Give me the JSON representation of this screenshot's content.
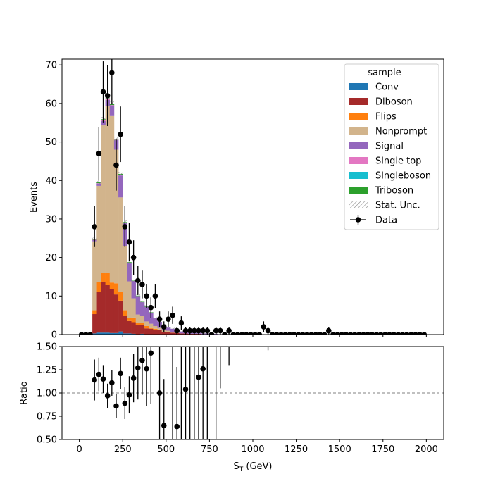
{
  "chart_data": [
    {
      "type": "stacked-histogram",
      "panel": "main",
      "xlabel": "",
      "ylabel": "Events",
      "xlim": [
        -100,
        2100
      ],
      "ylim": [
        0,
        71.5
      ],
      "xticks": [
        0,
        250,
        500,
        750,
        1000,
        1250,
        1500,
        1750,
        2000
      ],
      "xtick_labels": [
        "0",
        "250",
        "500",
        "750",
        "1000",
        "1250",
        "1500",
        "1750",
        "2000"
      ],
      "yticks": [
        0,
        10,
        20,
        30,
        40,
        50,
        60,
        70
      ],
      "ytick_labels": [
        "0",
        "10",
        "20",
        "30",
        "40",
        "50",
        "60",
        "70"
      ],
      "bin_edges": [
        75,
        100,
        125,
        150,
        175,
        200,
        225,
        250,
        275,
        300,
        325,
        350,
        375,
        400,
        425,
        450,
        475,
        500,
        525,
        550,
        575,
        600,
        625,
        650,
        675,
        700,
        725,
        750,
        775,
        800,
        825,
        850,
        875,
        900,
        925,
        950,
        975,
        1000
      ],
      "series": [
        {
          "name": "Conv",
          "color": "#1f77b4",
          "values": [
            0.3,
            0.5,
            0.5,
            0.5,
            0.4,
            0.4,
            0.8,
            0.3,
            0.3,
            0.2,
            0,
            0.2,
            0,
            0,
            0,
            0,
            0,
            0,
            0,
            0,
            0,
            0,
            0,
            0,
            0,
            0,
            0,
            0,
            0,
            0,
            0,
            0,
            0,
            0,
            0,
            0,
            0
          ]
        },
        {
          "name": "Diboson",
          "color": "#a52a2a",
          "values": [
            5,
            10.5,
            13.2,
            12.4,
            11.4,
            10,
            8,
            4.5,
            3.2,
            3,
            2.4,
            2.2,
            1.6,
            1.5,
            1.1,
            1.2,
            0.6,
            0.7,
            0.5,
            0.4,
            0.3,
            0.3,
            0.2,
            0.2,
            0.2,
            0.1,
            0.1,
            0.1,
            0.1,
            0,
            0,
            0,
            0,
            0,
            0,
            0,
            0
          ]
        },
        {
          "name": "Flips",
          "color": "#ff7f0e",
          "values": [
            1,
            2.7,
            2.3,
            3.1,
            1.7,
            2.9,
            2.2,
            1.5,
            0.8,
            1.2,
            0.6,
            0.6,
            0.6,
            0.2,
            0.4,
            0.1,
            0.1,
            0,
            0,
            0,
            0,
            0,
            0,
            0,
            0,
            0,
            0,
            0,
            0,
            0,
            0,
            0,
            0,
            0,
            0,
            0,
            0
          ]
        },
        {
          "name": "Nonprompt",
          "color": "#d2b48c",
          "values": [
            17.9,
            24.9,
            38.3,
            43.3,
            43.4,
            34.7,
            24.6,
            16.7,
            9.5,
            5,
            2.2,
            1.8,
            1.2,
            1.1,
            0.7,
            0.4,
            0.4,
            0.3,
            0.2,
            0.2,
            0,
            0,
            0,
            0,
            0,
            0,
            0,
            0,
            0,
            0,
            0,
            0,
            0,
            0,
            0,
            0,
            0
          ]
        },
        {
          "name": "Signal",
          "color": "#9467bd",
          "values": [
            0.3,
            0.6,
            1.1,
            1.6,
            2.6,
            2.5,
            5.7,
            5.9,
            4.7,
            4.5,
            4.8,
            3.6,
            3.8,
            2.9,
            2,
            1.6,
            1.3,
            0.8,
            0.8,
            0.7,
            0.5,
            0.4,
            0.4,
            0.3,
            0.3,
            0.2,
            0.2,
            0.1,
            0.1,
            0.1,
            0.1,
            0.1,
            0.05,
            0.05,
            0.05,
            0.05,
            0.05
          ]
        },
        {
          "name": "Single top",
          "color": "#e377c2",
          "values": [
            0.1,
            0.1,
            0.2,
            0.2,
            0.1,
            0.1,
            0.1,
            0.1,
            0.1,
            0,
            0,
            0,
            0,
            0,
            0,
            0,
            0,
            0,
            0,
            0,
            0,
            0,
            0,
            0,
            0,
            0,
            0,
            0,
            0,
            0,
            0,
            0,
            0,
            0,
            0,
            0,
            0
          ]
        },
        {
          "name": "Singleboson",
          "color": "#17becf",
          "values": [
            0,
            0,
            0,
            0,
            0,
            0,
            0,
            0,
            0,
            0,
            0,
            0,
            0,
            0,
            0,
            0,
            0,
            0,
            0,
            0,
            0,
            0,
            0,
            0,
            0,
            0,
            0,
            0,
            0,
            0,
            0,
            0,
            0,
            0,
            0,
            0,
            0
          ]
        },
        {
          "name": "Triboson",
          "color": "#2ca02c",
          "values": [
            0.1,
            0.2,
            0.3,
            0.2,
            0.3,
            0.2,
            0.3,
            0.2,
            0.2,
            0.1,
            0.1,
            0.1,
            0.1,
            0.1,
            0,
            0,
            0,
            0,
            0,
            0,
            0,
            0,
            0,
            0,
            0,
            0,
            0,
            0,
            0,
            0,
            0,
            0,
            0,
            0,
            0,
            0,
            0
          ]
        }
      ],
      "data_points": {
        "name": "Data",
        "x": [
          12.5,
          37.5,
          62.5,
          87.5,
          112.5,
          137.5,
          162.5,
          187.5,
          212.5,
          237.5,
          262.5,
          287.5,
          312.5,
          337.5,
          362.5,
          387.5,
          412.5,
          437.5,
          462.5,
          487.5,
          512.5,
          537.5,
          562.5,
          587.5,
          612.5,
          637.5,
          662.5,
          687.5,
          712.5,
          737.5,
          762.5,
          787.5,
          812.5,
          837.5,
          862.5,
          887.5,
          912.5,
          937.5,
          962.5,
          987.5,
          1012.5,
          1037.5,
          1062.5,
          1087.5,
          1112.5,
          1137.5,
          1162.5,
          1187.5,
          1212.5,
          1237.5,
          1262.5,
          1287.5,
          1312.5,
          1337.5,
          1362.5,
          1387.5,
          1412.5,
          1437.5,
          1462.5,
          1487.5,
          1512.5,
          1537.5,
          1562.5,
          1587.5,
          1612.5,
          1637.5,
          1662.5,
          1687.5,
          1712.5,
          1737.5,
          1762.5,
          1787.5,
          1812.5,
          1837.5,
          1862.5,
          1887.5,
          1912.5,
          1937.5,
          1962.5,
          1987.5
        ],
        "y": [
          0,
          0,
          0,
          28,
          47,
          63,
          62,
          68,
          44,
          52,
          28,
          24,
          20,
          14,
          13,
          10,
          7,
          10,
          4,
          2,
          4,
          5,
          1,
          3,
          1,
          1,
          1,
          1,
          1,
          1,
          0,
          1,
          1,
          0,
          1,
          0,
          0,
          0,
          0,
          0,
          0,
          0,
          2,
          1,
          0,
          0,
          0,
          0,
          0,
          0,
          0,
          0,
          0,
          0,
          0,
          0,
          0,
          1,
          0,
          0,
          0,
          0,
          0,
          0,
          0,
          0,
          0,
          0,
          0,
          0,
          0,
          0,
          0,
          0,
          0,
          0,
          0,
          0,
          0,
          0
        ]
      },
      "legend": {
        "title": "sample",
        "placement": "top-right",
        "stat_unc_label": "Stat. Unc.",
        "data_label": "Data"
      }
    },
    {
      "type": "scatter",
      "panel": "ratio",
      "xlabel": "S_T (GeV)",
      "ylabel": "Ratio",
      "xlim": [
        -100,
        2100
      ],
      "ylim": [
        0.5,
        1.5
      ],
      "yticks": [
        0.5,
        0.75,
        1.0,
        1.25,
        1.5
      ],
      "ytick_labels": [
        "0.50",
        "0.75",
        "1.00",
        "1.25",
        "1.50"
      ],
      "reference_line": 1.0,
      "x": [
        87.5,
        112.5,
        137.5,
        162.5,
        187.5,
        212.5,
        237.5,
        262.5,
        287.5,
        312.5,
        337.5,
        362.5,
        387.5,
        412.5,
        462.5,
        487.5,
        562.5,
        612.5,
        687.5,
        712.5
      ],
      "y": [
        1.14,
        1.2,
        1.15,
        0.97,
        1.11,
        0.86,
        1.21,
        0.89,
        0.98,
        1.16,
        1.27,
        1.35,
        1.26,
        1.43,
        1.0,
        0.65,
        0.64,
        1.04,
        1.17,
        1.26
      ],
      "err": [
        0.22,
        0.18,
        0.15,
        0.13,
        0.14,
        0.13,
        0.17,
        0.17,
        0.2,
        0.26,
        0.34,
        0.37,
        0.4,
        0.55,
        0.5,
        0.5,
        0.64,
        1.0,
        1.2,
        1.3
      ],
      "bars_without_points": [
        {
          "x": 537.5,
          "low": 0.5,
          "high": 1.5
        },
        {
          "x": 587.5,
          "low": 0.5,
          "high": 1.5
        },
        {
          "x": 637.5,
          "low": 0.5,
          "high": 1.5
        },
        {
          "x": 662.5,
          "low": 0.5,
          "high": 1.5
        },
        {
          "x": 737.5,
          "low": 0.5,
          "high": 1.5
        },
        {
          "x": 787.5,
          "low": 0.5,
          "high": 1.5
        },
        {
          "x": 812.5,
          "low": 1.05,
          "high": 1.5
        },
        {
          "x": 862.5,
          "low": 1.3,
          "high": 1.5
        },
        {
          "x": 1087.5,
          "low": 1.46,
          "high": 1.5
        }
      ]
    }
  ]
}
